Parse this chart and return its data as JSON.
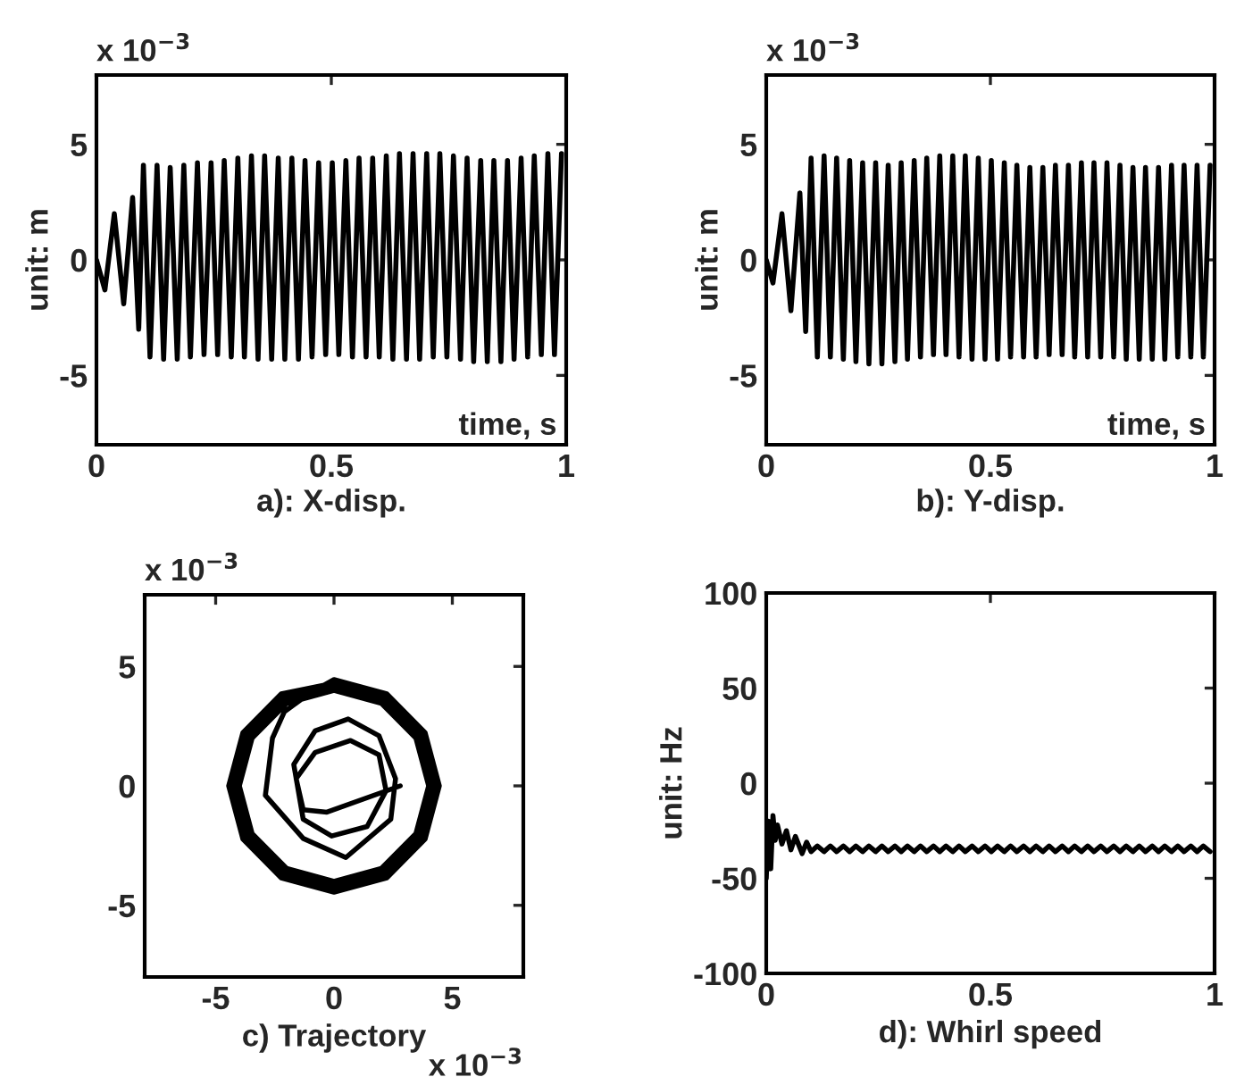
{
  "chart_data": [
    {
      "type": "line",
      "title": "a): X-disp.",
      "xlabel": "time, s",
      "ylabel": "unit: m",
      "annotations": [
        "x 10$^{−3}$"
      ],
      "xlim": [
        0,
        1
      ],
      "ylim": [
        -8,
        8
      ],
      "xticks": [
        0,
        0.5,
        1
      ],
      "yticks": [
        -5,
        0,
        5
      ],
      "x": [
        0,
        0.018,
        0.038,
        0.058,
        0.077,
        0.09,
        0.1,
        0.114,
        0.129,
        0.143,
        0.157,
        0.172,
        0.186,
        0.2,
        0.215,
        0.229,
        0.244,
        0.258,
        0.272,
        0.287,
        0.301,
        0.315,
        0.33,
        0.344,
        0.358,
        0.373,
        0.387,
        0.401,
        0.416,
        0.43,
        0.444,
        0.459,
        0.473,
        0.488,
        0.502,
        0.516,
        0.531,
        0.545,
        0.559,
        0.574,
        0.588,
        0.602,
        0.617,
        0.631,
        0.645,
        0.66,
        0.674,
        0.688,
        0.703,
        0.717,
        0.731,
        0.746,
        0.76,
        0.775,
        0.789,
        0.803,
        0.818,
        0.832,
        0.846,
        0.861,
        0.875,
        0.889,
        0.904,
        0.918,
        0.932,
        0.947,
        0.961,
        0.975,
        0.99
      ],
      "series": [
        {
          "color": "#000000",
          "values": [
            0,
            -1.3,
            2.0,
            -1.9,
            2.7,
            -3.0,
            4.1,
            -4.2,
            4.1,
            -4.3,
            4.0,
            -4.3,
            4.1,
            -4.2,
            4.2,
            -4.1,
            4.2,
            -4.1,
            4.3,
            -4.2,
            4.4,
            -4.2,
            4.5,
            -4.3,
            4.5,
            -4.3,
            4.4,
            -4.3,
            4.4,
            -4.3,
            4.3,
            -4.2,
            4.2,
            -4.1,
            4.2,
            -4.1,
            4.3,
            -4.2,
            4.4,
            -4.2,
            4.4,
            -4.2,
            4.5,
            -4.3,
            4.6,
            -4.3,
            4.6,
            -4.3,
            4.6,
            -4.2,
            4.6,
            -4.2,
            4.5,
            -4.3,
            4.4,
            -4.4,
            4.3,
            -4.4,
            4.3,
            -4.4,
            4.3,
            -4.3,
            4.4,
            -4.2,
            4.5,
            -4.1,
            4.6,
            -4.1,
            4.6
          ]
        }
      ]
    },
    {
      "type": "line",
      "title": "b): Y-disp.",
      "xlabel": "time, s",
      "ylabel": "unit: m",
      "annotations": [
        "x 10$^{−3}$"
      ],
      "xlim": [
        0,
        1
      ],
      "ylim": [
        -8,
        8
      ],
      "xticks": [
        0,
        0.5,
        1
      ],
      "yticks": [
        -5,
        0,
        5
      ],
      "x": [
        0,
        0.015,
        0.035,
        0.055,
        0.075,
        0.088,
        0.1,
        0.114,
        0.129,
        0.143,
        0.157,
        0.172,
        0.186,
        0.2,
        0.215,
        0.229,
        0.244,
        0.258,
        0.272,
        0.287,
        0.301,
        0.315,
        0.33,
        0.344,
        0.358,
        0.373,
        0.387,
        0.401,
        0.416,
        0.43,
        0.444,
        0.459,
        0.473,
        0.488,
        0.502,
        0.516,
        0.531,
        0.545,
        0.559,
        0.574,
        0.588,
        0.602,
        0.617,
        0.631,
        0.645,
        0.66,
        0.674,
        0.688,
        0.703,
        0.717,
        0.731,
        0.746,
        0.76,
        0.775,
        0.789,
        0.803,
        0.818,
        0.832,
        0.846,
        0.861,
        0.875,
        0.889,
        0.904,
        0.918,
        0.932,
        0.947,
        0.961,
        0.975,
        0.99
      ],
      "series": [
        {
          "color": "#000000",
          "values": [
            0,
            -1.0,
            2.0,
            -2.2,
            2.9,
            -3.1,
            4.4,
            -4.2,
            4.5,
            -4.2,
            4.4,
            -4.3,
            4.3,
            -4.4,
            4.2,
            -4.5,
            4.2,
            -4.5,
            4.1,
            -4.4,
            4.2,
            -4.3,
            4.3,
            -4.2,
            4.4,
            -4.1,
            4.5,
            -4.1,
            4.5,
            -4.2,
            4.5,
            -4.3,
            4.4,
            -4.3,
            4.3,
            -4.3,
            4.2,
            -4.2,
            4.1,
            -4.2,
            4.0,
            -4.2,
            4.0,
            -4.1,
            4.1,
            -4.1,
            4.1,
            -4.2,
            4.2,
            -4.2,
            4.2,
            -4.2,
            4.2,
            -4.2,
            4.1,
            -4.3,
            4.0,
            -4.3,
            4.0,
            -4.3,
            4.0,
            -4.3,
            4.1,
            -4.2,
            4.1,
            -4.2,
            4.1,
            -4.2,
            4.1
          ]
        }
      ]
    },
    {
      "type": "line",
      "title": "c) Trajectory",
      "annotations": [
        "x 10$^{−3}$",
        "x 10$^{−3}$"
      ],
      "xlim": [
        -8,
        8
      ],
      "ylim": [
        -8,
        8
      ],
      "xticks": [
        -5,
        0,
        5
      ],
      "yticks": [
        -5,
        0,
        5
      ],
      "series": [
        {
          "color": "#000000",
          "x": [
            2.8,
            -0.3,
            -1.3,
            -1.6,
            -0.8,
            0.7,
            1.9,
            2.2,
            1.4,
            -0.1,
            -1.3,
            -1.7,
            -0.8,
            0.6,
            1.9,
            2.6,
            2.4,
            0.5,
            -1.3,
            -2.9,
            -2.6,
            -2.1,
            -1.0,
            0,
            2.23,
            3.85,
            4.45,
            3.85,
            2.23,
            0,
            -2.23,
            -3.85,
            -4.45,
            -3.85,
            -2.23,
            0,
            2.15,
            3.72,
            4.3,
            3.72,
            2.15,
            0,
            -2.15,
            -3.72,
            -4.3,
            -3.72,
            -2.15,
            0,
            2.08,
            3.59,
            4.15,
            3.59,
            2.08,
            0,
            -2.08,
            -3.59,
            -4.15,
            -3.59,
            -2.08,
            0,
            2.0,
            3.46,
            4.0,
            3.46,
            2.0,
            0,
            -2.0,
            -3.46,
            -4.0,
            -3.46,
            -2.0,
            0
          ],
          "values": [
            0.0,
            -1.1,
            -1.0,
            0.3,
            1.4,
            1.9,
            1.3,
            -0.2,
            -1.7,
            -2.1,
            -1.4,
            0.9,
            2.3,
            2.8,
            2.1,
            0.3,
            -1.4,
            -3.0,
            -2.2,
            -0.4,
            2.0,
            3.1,
            3.9,
            4.45,
            3.85,
            2.23,
            0,
            -2.23,
            -3.85,
            -4.45,
            -3.85,
            -2.23,
            0,
            2.23,
            3.85,
            4.3,
            3.72,
            2.15,
            0,
            -2.15,
            -3.72,
            -4.3,
            -3.72,
            -2.15,
            0,
            2.15,
            3.72,
            4.15,
            3.59,
            2.08,
            0,
            -2.08,
            -3.59,
            -4.15,
            -3.59,
            -2.08,
            0,
            2.08,
            3.59,
            4.0,
            3.46,
            2.0,
            0,
            -2.0,
            -3.46,
            -4.0,
            -3.46,
            -2.0,
            0,
            2.0,
            3.46,
            4.0
          ]
        }
      ]
    },
    {
      "type": "line",
      "title": "d): Whirl speed",
      "ylabel": "unit: Hz",
      "xlim": [
        0,
        1
      ],
      "ylim": [
        -100,
        100
      ],
      "xticks": [
        0,
        0.5,
        1
      ],
      "yticks": [
        -100,
        -50,
        0,
        50,
        100
      ],
      "x": [
        0,
        0.005,
        0.01,
        0.015,
        0.02,
        0.025,
        0.035,
        0.045,
        0.055,
        0.065,
        0.08,
        0.09,
        0.1,
        0.114,
        0.129,
        0.143,
        0.157,
        0.172,
        0.186,
        0.2,
        0.215,
        0.229,
        0.244,
        0.258,
        0.272,
        0.287,
        0.301,
        0.315,
        0.33,
        0.344,
        0.358,
        0.373,
        0.387,
        0.401,
        0.416,
        0.43,
        0.444,
        0.459,
        0.473,
        0.488,
        0.502,
        0.516,
        0.531,
        0.545,
        0.559,
        0.574,
        0.588,
        0.602,
        0.617,
        0.631,
        0.645,
        0.66,
        0.674,
        0.688,
        0.703,
        0.717,
        0.731,
        0.746,
        0.76,
        0.775,
        0.789,
        0.803,
        0.818,
        0.832,
        0.846,
        0.861,
        0.875,
        0.889,
        0.904,
        0.918,
        0.932,
        0.947,
        0.961,
        0.975,
        0.99
      ],
      "series": [
        {
          "color": "#000000",
          "values": [
            -50,
            -20,
            -45,
            -17,
            -30,
            -22,
            -32,
            -25,
            -35,
            -28,
            -37,
            -31,
            -36,
            -33,
            -36,
            -33,
            -36,
            -33,
            -36,
            -33,
            -36,
            -33,
            -36,
            -33,
            -36,
            -33,
            -36,
            -33,
            -36,
            -33,
            -36,
            -33,
            -36,
            -33,
            -36,
            -33,
            -36,
            -33,
            -36,
            -33,
            -36,
            -33,
            -36,
            -33,
            -36,
            -33,
            -36,
            -33,
            -36,
            -33,
            -36,
            -33,
            -36,
            -33,
            -36,
            -33,
            -36,
            -33,
            -36,
            -33,
            -36,
            -33,
            -36,
            -33,
            -36,
            -33,
            -36,
            -33,
            -36,
            -33,
            -36,
            -33,
            -36,
            -33,
            -36
          ]
        }
      ]
    }
  ]
}
